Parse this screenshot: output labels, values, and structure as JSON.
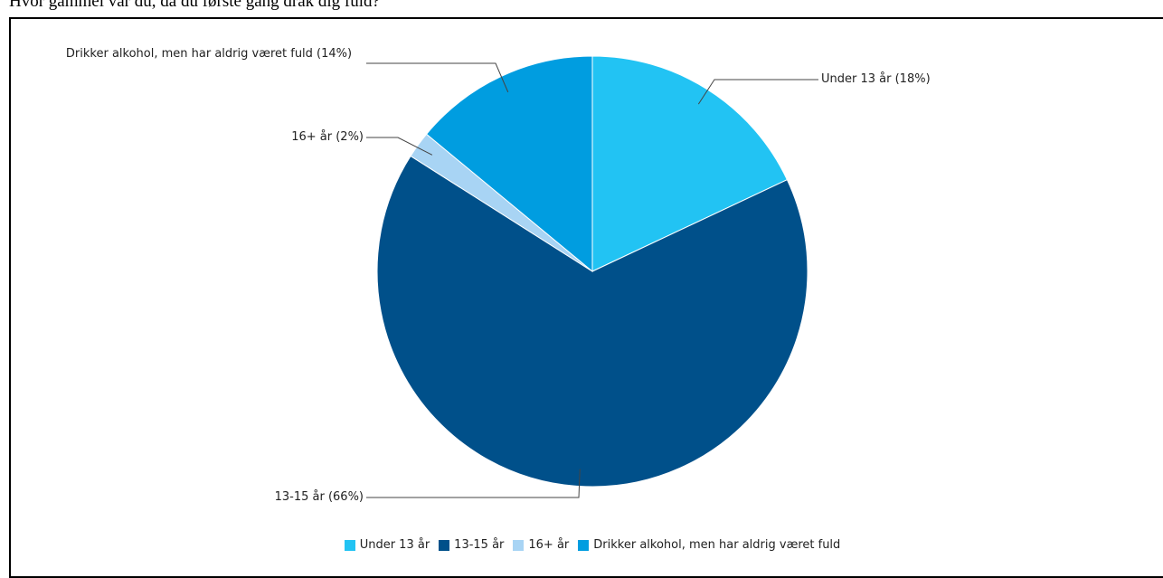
{
  "chart_data": {
    "type": "pie",
    "title": "Hvor gammel var du, da du første gang drak dig fuld?",
    "categories": [
      "Under 13 år",
      "13-15 år",
      "16+ år",
      "Drikker alkohol, men har aldrig været fuld"
    ],
    "values": [
      18,
      66,
      2,
      14
    ],
    "value_labels": [
      "Under 13 år (18%)",
      "13-15 år (66%)",
      "16+ år (2%)",
      "Drikker alkohol, men har aldrig været fuld (14%)"
    ],
    "colors": [
      "#22c3f3",
      "#00508a",
      "#a8d4f4",
      "#009de0"
    ],
    "legend": "bottom"
  }
}
